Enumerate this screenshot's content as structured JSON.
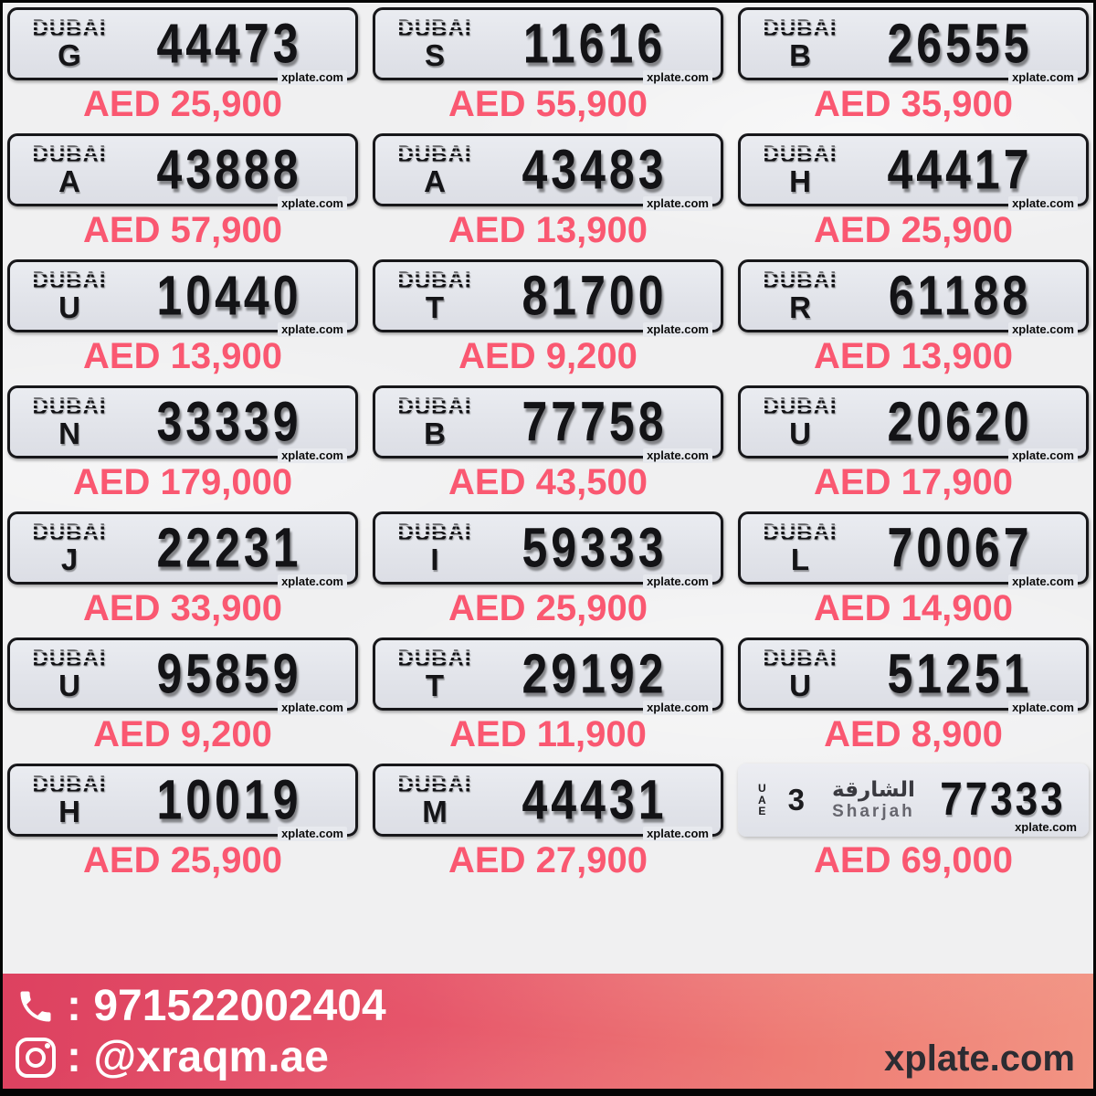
{
  "dubai_logo": "DUBAI",
  "watermark": "xplate.com",
  "plates": [
    {
      "type": "dubai",
      "code": "G",
      "number": "44473",
      "price": "AED 25,900"
    },
    {
      "type": "dubai",
      "code": "S",
      "number": "11616",
      "price": "AED 55,900"
    },
    {
      "type": "dubai",
      "code": "B",
      "number": "26555",
      "price": "AED 35,900"
    },
    {
      "type": "dubai",
      "code": "A",
      "number": "43888",
      "price": "AED 57,900"
    },
    {
      "type": "dubai",
      "code": "A",
      "number": "43483",
      "price": "AED 13,900"
    },
    {
      "type": "dubai",
      "code": "H",
      "number": "44417",
      "price": "AED 25,900"
    },
    {
      "type": "dubai",
      "code": "U",
      "number": "10440",
      "price": "AED 13,900"
    },
    {
      "type": "dubai",
      "code": "T",
      "number": "81700",
      "price": "AED 9,200"
    },
    {
      "type": "dubai",
      "code": "R",
      "number": "61188",
      "price": "AED 13,900"
    },
    {
      "type": "dubai",
      "code": "N",
      "number": "33339",
      "price": "AED 179,000"
    },
    {
      "type": "dubai",
      "code": "B",
      "number": "77758",
      "price": "AED 43,500"
    },
    {
      "type": "dubai",
      "code": "U",
      "number": "20620",
      "price": "AED 17,900"
    },
    {
      "type": "dubai",
      "code": "J",
      "number": "22231",
      "price": "AED 33,900"
    },
    {
      "type": "dubai",
      "code": "I",
      "number": "59333",
      "price": "AED 25,900"
    },
    {
      "type": "dubai",
      "code": "L",
      "number": "70067",
      "price": "AED 14,900"
    },
    {
      "type": "dubai",
      "code": "U",
      "number": "95859",
      "price": "AED 9,200"
    },
    {
      "type": "dubai",
      "code": "T",
      "number": "29192",
      "price": "AED 11,900"
    },
    {
      "type": "dubai",
      "code": "U",
      "number": "51251",
      "price": "AED 8,900"
    },
    {
      "type": "dubai",
      "code": "H",
      "number": "10019",
      "price": "AED 25,900"
    },
    {
      "type": "dubai",
      "code": "M",
      "number": "44431",
      "price": "AED 27,900"
    },
    {
      "type": "sharjah",
      "country": "UAE",
      "category": "3",
      "city_arabic": "الشارقة",
      "city_en": "Sharjah",
      "number": "77333",
      "price": "AED 69,000"
    }
  ],
  "footer": {
    "phone_label": ": 971522002404",
    "instagram_label": ": @xraqm.ae",
    "site": "xplate.com"
  },
  "colors": {
    "price_pink": "#fa5871",
    "plate_bg": "#e2e4ea",
    "plate_border": "#17171a",
    "footer_gradient_left": "#dd4160",
    "footer_gradient_right": "#f29483"
  }
}
